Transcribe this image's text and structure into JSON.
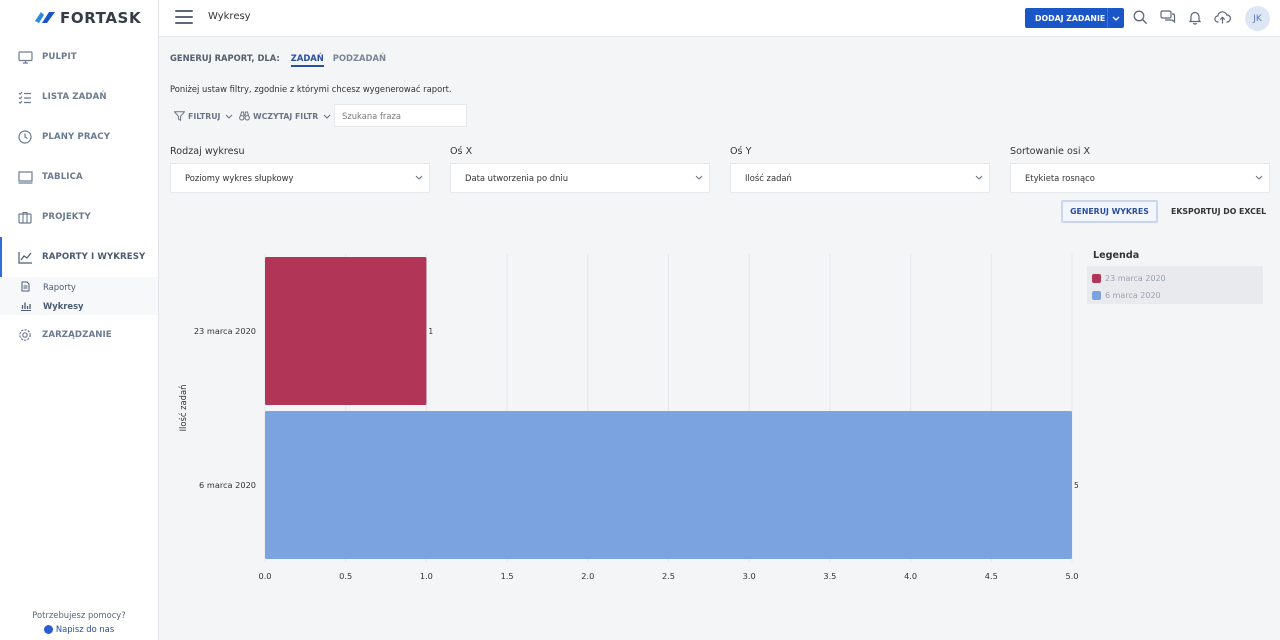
{
  "app": {
    "logo_text": "FORTASK",
    "page_title": "Wykresy"
  },
  "sidebar": {
    "items": [
      {
        "label": "PULPIT",
        "icon": "monitor-icon"
      },
      {
        "label": "LISTA ZADAŃ",
        "icon": "checklist-icon"
      },
      {
        "label": "PLANY PRACY",
        "icon": "clock-icon"
      },
      {
        "label": "TABLICA",
        "icon": "board-icon"
      },
      {
        "label": "PROJEKTY",
        "icon": "briefcase-icon"
      },
      {
        "label": "RAPORTY I WYKRESY",
        "icon": "trend-icon"
      },
      {
        "label": "ZARZĄDZANIE",
        "icon": "gear-icon"
      }
    ],
    "subitems": [
      {
        "label": "Raporty",
        "icon": "document-icon"
      },
      {
        "label": "Wykresy",
        "icon": "bar-chart-icon"
      }
    ],
    "help_text": "Potrzebujesz pomocy?",
    "help_link": "Napisz do nas"
  },
  "header": {
    "add_task_label": "DODAJ ZADANIE",
    "avatar_initials": "JK"
  },
  "report": {
    "for_label": "GENERUJ RAPORT, DLA:",
    "tabs": [
      "ZADAŃ",
      "PODZADAŃ"
    ],
    "instructions": "Poniżej ustaw filtry, zgodnie z którymi chcesz wygenerować raport.",
    "filter_label": "FILTRUJ",
    "load_filter_label": "WCZYTAJ FILTR",
    "search_placeholder": "Szukana fraza"
  },
  "fields": [
    {
      "label": "Rodzaj wykresu",
      "value": "Poziomy wykres słupkowy"
    },
    {
      "label": "Oś X",
      "value": "Data utworzenia po dniu"
    },
    {
      "label": "Oś Y",
      "value": "Ilość zadań"
    },
    {
      "label": "Sortowanie osi X",
      "value": "Etykieta rosnąco"
    }
  ],
  "actions": {
    "generate_label": "GENERUJ WYKRES",
    "export_label": "EKSPORTUJ DO EXCEL"
  },
  "legend_title": "Legenda",
  "colors": {
    "accent": "#1a56c7",
    "series_1": "#b03557",
    "series_2": "#7ba3e0"
  },
  "chart_data": {
    "type": "bar",
    "orientation": "horizontal",
    "categories": [
      "23 marca 2020",
      "6 marca 2020"
    ],
    "values": [
      1,
      5
    ],
    "data_labels": [
      "1",
      "5"
    ],
    "colors": [
      "#b03557",
      "#7ba3e0"
    ],
    "xlabel": "",
    "ylabel": "Ilość zadań",
    "xlim": [
      0,
      5
    ],
    "x_ticks": [
      "0.0",
      "0.5",
      "1.0",
      "1.5",
      "2.0",
      "2.5",
      "3.0",
      "3.5",
      "4.0",
      "4.5",
      "5.0"
    ],
    "grid": true,
    "legend": [
      "23 marca 2020",
      "6 marca 2020"
    ],
    "legend_position": "right"
  }
}
